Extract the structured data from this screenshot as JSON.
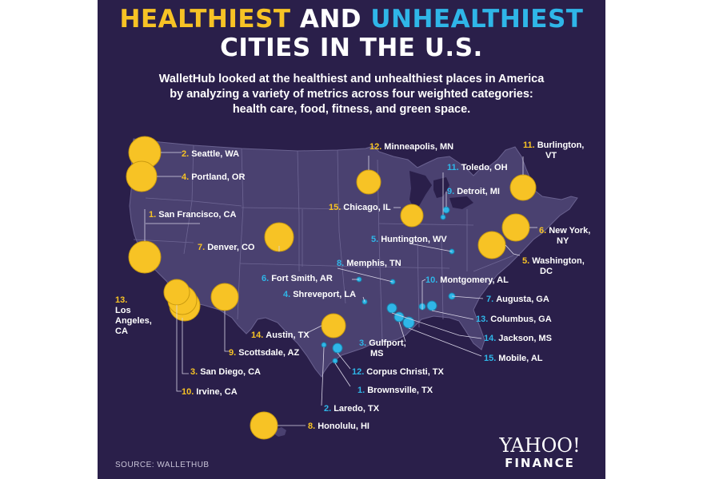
{
  "title": {
    "part1": "HEALTHIEST",
    "part2": "AND",
    "part3": "UNHEALTHIEST",
    "line2": "CITIES IN THE U.S."
  },
  "subtitle": [
    "WalletHub looked at the healthiest and unhealthiest places in America",
    "by analyzing a variety of metrics across four weighted categories:",
    "health care, food, fitness, and green space."
  ],
  "colors": {
    "background": "#2a1f4a",
    "healthiest": "#f7c325",
    "unhealthiest": "#2fb6e8",
    "land": "#4a4170"
  },
  "healthiest": [
    {
      "rank": "1.",
      "city": "San Francisco, CA"
    },
    {
      "rank": "2.",
      "city": "Seattle, WA"
    },
    {
      "rank": "3.",
      "city": "San Diego, CA"
    },
    {
      "rank": "4.",
      "city": "Portland, OR"
    },
    {
      "rank": "5.",
      "city": "Washington,",
      "city2": "DC"
    },
    {
      "rank": "6.",
      "city": "New York,",
      "city2": "NY"
    },
    {
      "rank": "7.",
      "city": "Denver, CO"
    },
    {
      "rank": "8.",
      "city": "Honolulu, HI"
    },
    {
      "rank": "9.",
      "city": "Scottsdale, AZ"
    },
    {
      "rank": "10.",
      "city": "Irvine, CA"
    },
    {
      "rank": "11.",
      "city": "Burlington,",
      "city2": "VT"
    },
    {
      "rank": "12.",
      "city": "Minneapolis, MN"
    },
    {
      "rank": "13.",
      "city": "Los",
      "city2": "Angeles,",
      "city3": "CA"
    },
    {
      "rank": "14.",
      "city": "Austin, TX"
    },
    {
      "rank": "15.",
      "city": "Chicago, IL"
    }
  ],
  "unhealthiest": [
    {
      "rank": "1.",
      "city": "Brownsville, TX"
    },
    {
      "rank": "2.",
      "city": "Laredo, TX"
    },
    {
      "rank": "3.",
      "city": "Gulfport,",
      "city2": "MS"
    },
    {
      "rank": "4.",
      "city": "Shreveport, LA"
    },
    {
      "rank": "5.",
      "city": "Huntington, WV"
    },
    {
      "rank": "6.",
      "city": "Fort Smith, AR"
    },
    {
      "rank": "7.",
      "city": "Augusta, GA"
    },
    {
      "rank": "8.",
      "city": "Memphis, TN"
    },
    {
      "rank": "9.",
      "city": "Detroit, MI"
    },
    {
      "rank": "10.",
      "city": "Montgomery, AL"
    },
    {
      "rank": "11.",
      "city": "Toledo, OH"
    },
    {
      "rank": "12.",
      "city": "Corpus Christi, TX"
    },
    {
      "rank": "13.",
      "city": "Columbus, GA"
    },
    {
      "rank": "14.",
      "city": "Jackson, MS"
    },
    {
      "rank": "15.",
      "city": "Mobile, AL"
    }
  ],
  "source": "SOURCE:  WALLETHUB",
  "logo": {
    "line1": "YAHOO!",
    "line2": "FINANCE"
  }
}
